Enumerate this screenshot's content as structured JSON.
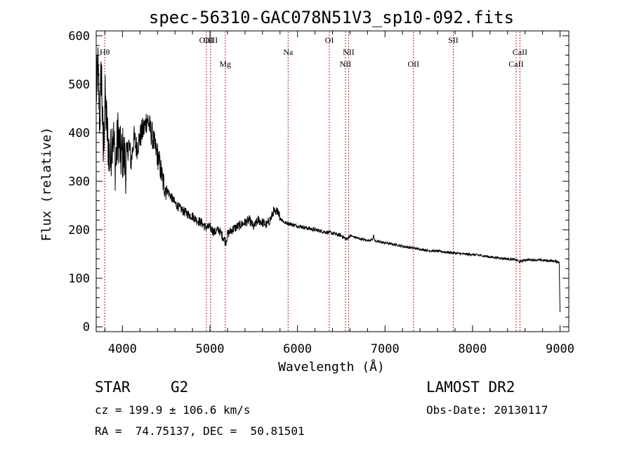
{
  "chart_data": {
    "type": "line",
    "title": "spec-56310-GAC078N51V3_sp10-092.fits",
    "xlabel": "Wavelength (Å)",
    "ylabel": "Flux (relative)",
    "xlim": [
      3700,
      9100
    ],
    "ylim": [
      -10,
      610
    ],
    "xticks": [
      4000,
      5000,
      6000,
      7000,
      8000,
      9000
    ],
    "yticks": [
      0,
      100,
      200,
      300,
      400,
      500,
      600
    ],
    "xtick_labels": [
      "4000",
      "5000",
      "6000",
      "7000",
      "8000",
      "9000"
    ],
    "ytick_labels": [
      "0",
      "100",
      "200",
      "300",
      "400",
      "500",
      "600"
    ],
    "grid": false,
    "series": [
      {
        "name": "spectrum",
        "x": [
          3700,
          3720,
          3740,
          3760,
          3780,
          3800,
          3830,
          3860,
          3890,
          3920,
          3950,
          3980,
          4010,
          4040,
          4070,
          4100,
          4130,
          4160,
          4190,
          4220,
          4250,
          4280,
          4300,
          4320,
          4340,
          4370,
          4400,
          4430,
          4460,
          4500,
          4550,
          4600,
          4650,
          4700,
          4750,
          4800,
          4850,
          4900,
          4950,
          5000,
          5050,
          5100,
          5150,
          5180,
          5200,
          5250,
          5300,
          5350,
          5400,
          5450,
          5500,
          5550,
          5600,
          5650,
          5700,
          5730,
          5750,
          5770,
          5800,
          5850,
          5900,
          5950,
          6000,
          6100,
          6200,
          6300,
          6400,
          6500,
          6560,
          6600,
          6700,
          6800,
          6860,
          6870,
          6880,
          6900,
          7000,
          7100,
          7200,
          7300,
          7400,
          7500,
          7600,
          7700,
          7800,
          7900,
          8000,
          8100,
          8200,
          8300,
          8400,
          8500,
          8540,
          8600,
          8700,
          8800,
          8900,
          8990,
          9000
        ],
        "y": [
          480,
          530,
          420,
          540,
          350,
          470,
          390,
          340,
          410,
          330,
          400,
          350,
          360,
          330,
          380,
          340,
          390,
          370,
          385,
          400,
          410,
          430,
          420,
          405,
          395,
          370,
          355,
          330,
          300,
          285,
          270,
          255,
          245,
          238,
          232,
          228,
          220,
          215,
          205,
          205,
          195,
          200,
          185,
          175,
          190,
          200,
          205,
          210,
          215,
          220,
          205,
          220,
          215,
          210,
          225,
          240,
          230,
          245,
          225,
          215,
          213,
          210,
          208,
          204,
          200,
          196,
          193,
          188,
          180,
          188,
          182,
          178,
          180,
          190,
          178,
          176,
          173,
          170,
          166,
          163,
          160,
          157,
          156,
          154,
          152,
          150,
          149,
          147,
          144,
          142,
          140,
          138,
          134,
          138,
          138,
          137,
          136,
          134,
          30
        ]
      }
    ],
    "lines": [
      {
        "label": "Hθ",
        "x": 3798,
        "row": 1
      },
      {
        "label": "OIII",
        "x": 4959,
        "row": 0
      },
      {
        "label": "OIII",
        "x": 5007,
        "row": 0
      },
      {
        "label": "Mg",
        "x": 5175,
        "row": 2
      },
      {
        "label": "Na",
        "x": 5893,
        "row": 1
      },
      {
        "label": "OI",
        "x": 6364,
        "row": 0
      },
      {
        "label": "NII",
        "x": 6548,
        "row": 2
      },
      {
        "label": "NII",
        "x": 6584,
        "row": 1
      },
      {
        "label": "OII",
        "x": 7325,
        "row": 2
      },
      {
        "label": "SII",
        "x": 7780,
        "row": 0
      },
      {
        "label": "CaII",
        "x": 8498,
        "row": 2
      },
      {
        "label": "CaII",
        "x": 8542,
        "row": 1
      }
    ]
  },
  "info": {
    "class_label": "STAR",
    "subclass": "G2",
    "survey": "LAMOST DR2",
    "cz": "cz = 199.9 ± 106.6 km/s",
    "obs_date": "Obs-Date: 20130117",
    "coords": "RA =  74.75137, DEC =  50.81501"
  },
  "colors": {
    "line_marker": "#b22222",
    "spectrum": "#000000",
    "axes": "#000000"
  }
}
